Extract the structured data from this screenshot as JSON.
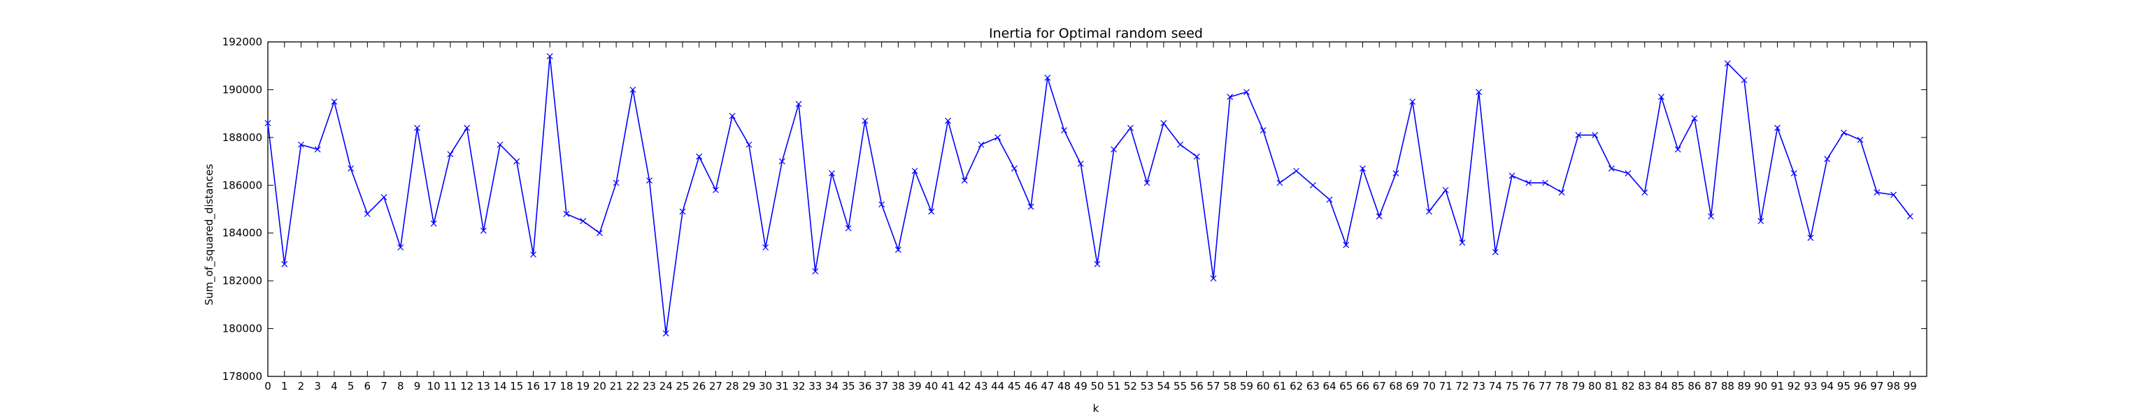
{
  "chart_data": {
    "type": "line",
    "title": "Inertia for Optimal random seed",
    "xlabel": "k",
    "ylabel": "Sum_of_squared_distances",
    "xlim": [
      0,
      100
    ],
    "ylim": [
      178000,
      192000
    ],
    "yticks": [
      178000,
      180000,
      182000,
      184000,
      186000,
      188000,
      190000,
      192000
    ],
    "xticks": [
      0,
      1,
      2,
      3,
      4,
      5,
      6,
      7,
      8,
      9,
      10,
      11,
      12,
      13,
      14,
      15,
      16,
      17,
      18,
      19,
      20,
      21,
      22,
      23,
      24,
      25,
      26,
      27,
      28,
      29,
      30,
      31,
      32,
      33,
      34,
      35,
      36,
      37,
      38,
      39,
      40,
      41,
      42,
      43,
      44,
      45,
      46,
      47,
      48,
      49,
      50,
      51,
      52,
      53,
      54,
      55,
      56,
      57,
      58,
      59,
      60,
      61,
      62,
      63,
      64,
      65,
      66,
      67,
      68,
      69,
      70,
      71,
      72,
      73,
      74,
      75,
      76,
      77,
      78,
      79,
      80,
      81,
      82,
      83,
      84,
      85,
      86,
      87,
      88,
      89,
      90,
      91,
      92,
      93,
      94,
      95,
      96,
      97,
      98,
      99
    ],
    "grid": false,
    "marker": "x",
    "line_color": "#0000ff",
    "series": [
      {
        "x": [
          0,
          1,
          2,
          3,
          4,
          5,
          6,
          7,
          8,
          9,
          10,
          11,
          12,
          13,
          14,
          15,
          16,
          17,
          18,
          19,
          20,
          21,
          22,
          23,
          24,
          25,
          26,
          27,
          28,
          29,
          30,
          31,
          32,
          33,
          34,
          35,
          36,
          37,
          38,
          39,
          40,
          41,
          42,
          43,
          44,
          45,
          46,
          47,
          48,
          49,
          50,
          51,
          52,
          53,
          54,
          55,
          56,
          57,
          58,
          59,
          60,
          61,
          62,
          63,
          64,
          65,
          66,
          67,
          68,
          69,
          70,
          71,
          72,
          73,
          74,
          75,
          76,
          77,
          78,
          79,
          80,
          81,
          82,
          83,
          84,
          85,
          86,
          87,
          88,
          89,
          90,
          91,
          92,
          93,
          94,
          95,
          96,
          97,
          98,
          99
        ],
        "values": [
          188600,
          182700,
          187700,
          187500,
          189500,
          186700,
          184800,
          185500,
          183400,
          188400,
          184400,
          187300,
          188400,
          184100,
          187700,
          187000,
          183100,
          191400,
          184800,
          184500,
          184000,
          186100,
          190000,
          186200,
          179800,
          184900,
          187200,
          185800,
          188900,
          187700,
          183400,
          187000,
          189400,
          182400,
          186500,
          184200,
          188700,
          185200,
          183300,
          186600,
          184900,
          188700,
          186200,
          187700,
          188000,
          186700,
          185100,
          190500,
          188300,
          186900,
          182700,
          187500,
          188400,
          186100,
          188600,
          187700,
          187200,
          182100,
          189700,
          189900,
          188300,
          186100,
          186600,
          186000,
          185400,
          183500,
          186700,
          184700,
          186500,
          189500,
          184900,
          185800,
          183600,
          189900,
          183200,
          186400,
          186100,
          186100,
          185700,
          188100,
          188100,
          186700,
          186500,
          185700,
          189700,
          187500,
          188800,
          184700,
          191100,
          190400,
          184500,
          188400,
          186500,
          183800,
          187100,
          188200,
          187900,
          185700,
          185600,
          184700
        ]
      }
    ]
  }
}
